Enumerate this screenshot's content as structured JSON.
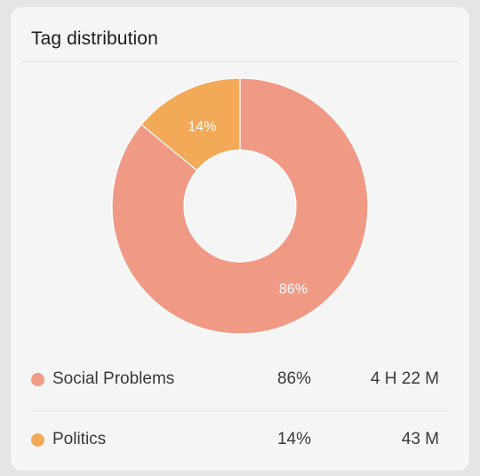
{
  "card": {
    "title": "Tag distribution"
  },
  "colors": {
    "social_problems": "#f09a86",
    "politics": "#f2aa58",
    "card_background": "#f5f5f5"
  },
  "chart_data": {
    "type": "pie",
    "title": "Tag distribution",
    "donut": true,
    "slices": [
      {
        "label": "Social Problems",
        "value": 86,
        "value_label": "86%",
        "color": "#f09a86"
      },
      {
        "label": "Politics",
        "value": 14,
        "value_label": "14%",
        "color": "#f2aa58"
      }
    ]
  },
  "legend": [
    {
      "name": "Social Problems",
      "percent": "86%",
      "duration": "4 H 22 M",
      "color": "#f09a86"
    },
    {
      "name": "Politics",
      "percent": "14%",
      "duration": "43 M",
      "color": "#f2aa58"
    }
  ]
}
